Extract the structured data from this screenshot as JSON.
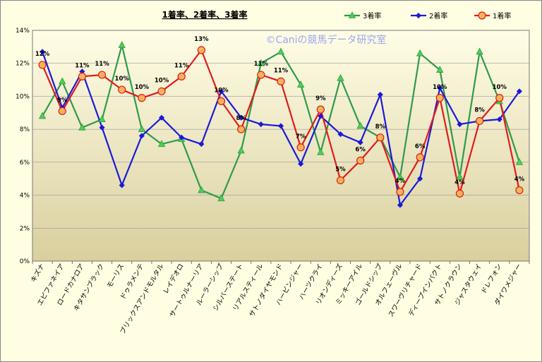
{
  "chart_data": {
    "type": "line",
    "title": "1着率、2着率、3着率",
    "watermark": "©Caniの競馬データ研究室",
    "ylim": [
      0,
      14
    ],
    "yticks": [
      "0%",
      "2%",
      "4%",
      "6%",
      "8%",
      "10%",
      "12%",
      "14%"
    ],
    "grid": true,
    "legend_position": "top-right",
    "categories": [
      "キズナ",
      "エピファネイア",
      "ロードカナロア",
      "キタサンブラック",
      "モーリス",
      "ドゥラメンテ",
      "ブリックスアンドモルタル",
      "レイデオロ",
      "サートゥルナーリア",
      "ルーラーシップ",
      "シルバーステート",
      "リアルスティール",
      "サトノダイヤモンド",
      "ハービンジャー",
      "ハーツクライ",
      "リオンディーズ",
      "ミッキーアイル",
      "ゴールドシップ",
      "オルフェーヴル",
      "スワーヴリチャード",
      "ディープインパクト",
      "サトノクラウン",
      "ジャスタウェイ",
      "ドレフォン",
      "ダイワメジャー"
    ],
    "series": [
      {
        "name": "3着率",
        "color": "#2f9a4a",
        "marker": "triangle",
        "values": [
          8.8,
          10.9,
          8.1,
          8.6,
          13.1,
          8.0,
          7.1,
          7.4,
          4.3,
          3.8,
          6.7,
          12.0,
          12.7,
          10.7,
          6.6,
          11.1,
          8.2,
          7.5,
          5.1,
          12.6,
          11.6,
          5.1,
          12.7,
          9.7,
          6.0
        ]
      },
      {
        "name": "2着率",
        "color": "#1a1ad8",
        "marker": "diamond",
        "values": [
          12.7,
          9.3,
          11.5,
          8.1,
          4.6,
          7.6,
          8.7,
          7.5,
          7.1,
          10.3,
          8.7,
          8.3,
          8.2,
          5.9,
          8.8,
          7.7,
          7.2,
          10.1,
          3.4,
          5.0,
          10.5,
          8.3,
          8.5,
          8.6,
          10.3
        ]
      },
      {
        "name": "1着率",
        "color": "#e21b1b",
        "marker": "circle",
        "values": [
          11.9,
          9.1,
          11.2,
          11.3,
          10.4,
          9.9,
          10.3,
          11.2,
          12.8,
          9.7,
          8.0,
          11.3,
          10.9,
          6.9,
          9.2,
          4.9,
          6.1,
          7.5,
          4.2,
          6.3,
          9.9,
          4.1,
          8.5,
          9.9,
          4.3
        ]
      }
    ],
    "data_labels": [
      "12%",
      "9%",
      "11%",
      "11%",
      "10%",
      "10%",
      "10%",
      "11%",
      "13%",
      "10%",
      "8%",
      "11%",
      "11%",
      "7%",
      "9%",
      "5%",
      "6%",
      "8%",
      "4%",
      "6%",
      "10%",
      "4%",
      "8%",
      "10%",
      "4%"
    ]
  }
}
